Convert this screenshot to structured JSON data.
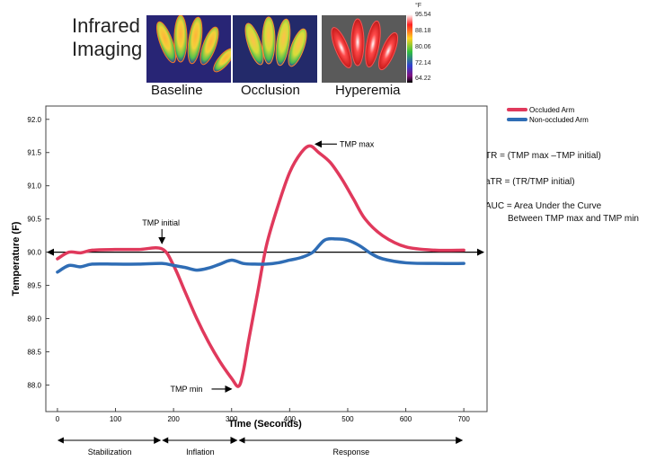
{
  "infrared": {
    "title_line1": "Infrared",
    "title_line2": "Imaging",
    "panels": [
      "Baseline",
      "Occlusion",
      "Hyperemia"
    ],
    "colorbar": {
      "unit": "°F",
      "ticks": [
        "95.54",
        "88.18",
        "80.06",
        "72.14",
        "64.22"
      ]
    }
  },
  "notes": [
    "TR = (TMP max –TMP initial)",
    "aTR = (TR/TMP initial)",
    "AUC = Area Under the Curve",
    "Between TMP max and TMP min"
  ],
  "chart_data": {
    "type": "line",
    "title": "",
    "xlabel": "Time (Seconds)",
    "ylabel": "Temperature (F)",
    "xlim": [
      -20,
      740
    ],
    "ylim": [
      87.6,
      92.2
    ],
    "xticks": [
      0,
      100,
      200,
      300,
      400,
      500,
      600,
      700
    ],
    "yticks": [
      88.0,
      88.5,
      89.0,
      89.5,
      90.0,
      90.5,
      91.0,
      91.5,
      92.0
    ],
    "baseline_y": 90.0,
    "grid": false,
    "legend_position": "top-right",
    "series": [
      {
        "name": "Occluded Arm",
        "color": "#e0395c",
        "x": [
          0,
          20,
          40,
          60,
          100,
          140,
          180,
          200,
          220,
          240,
          260,
          280,
          300,
          312,
          320,
          330,
          345,
          360,
          380,
          400,
          420,
          435,
          450,
          470,
          490,
          510,
          530,
          560,
          600,
          650,
          700
        ],
        "y": [
          89.9,
          90.0,
          89.99,
          90.03,
          90.04,
          90.04,
          90.05,
          89.8,
          89.4,
          89.0,
          88.65,
          88.35,
          88.1,
          87.98,
          88.2,
          88.7,
          89.4,
          90.1,
          90.7,
          91.2,
          91.5,
          91.6,
          91.5,
          91.35,
          91.1,
          90.8,
          90.5,
          90.25,
          90.08,
          90.03,
          90.03
        ]
      },
      {
        "name": "Non-occluded Arm",
        "color": "#2f6db5",
        "x": [
          0,
          20,
          40,
          60,
          100,
          140,
          180,
          200,
          220,
          240,
          260,
          280,
          300,
          320,
          340,
          360,
          380,
          400,
          420,
          440,
          460,
          480,
          500,
          520,
          540,
          560,
          600,
          650,
          700
        ],
        "y": [
          89.7,
          89.8,
          89.78,
          89.82,
          89.82,
          89.82,
          89.83,
          89.8,
          89.77,
          89.73,
          89.76,
          89.82,
          89.88,
          89.83,
          89.82,
          89.82,
          89.84,
          89.88,
          89.92,
          90.0,
          90.18,
          90.2,
          90.18,
          90.1,
          89.98,
          89.9,
          89.84,
          89.83,
          89.83
        ]
      }
    ],
    "annotations": [
      {
        "text": "TMP initial",
        "x": 180,
        "y": 90.05
      },
      {
        "text": "TMP max",
        "x": 435,
        "y": 91.6
      },
      {
        "text": "TMP min",
        "x": 312,
        "y": 87.98
      }
    ],
    "phases": [
      {
        "label": "Stabilization",
        "start": 0,
        "end": 180
      },
      {
        "label": "Inflation",
        "start": 180,
        "end": 312
      },
      {
        "label": "Response",
        "start": 312,
        "end": 700
      }
    ]
  }
}
